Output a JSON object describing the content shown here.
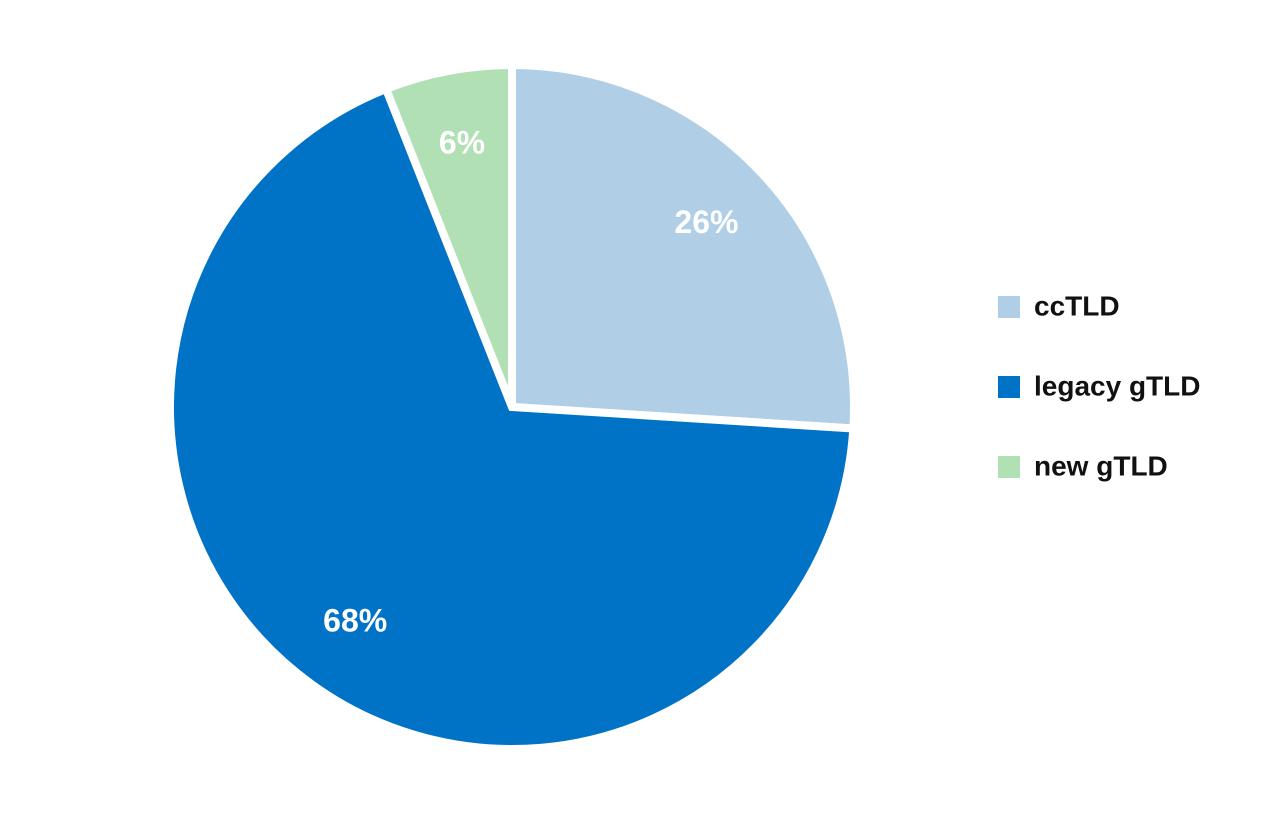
{
  "chart_data": {
    "type": "pie",
    "categories": [
      "ccTLD",
      "legacy gTLD",
      "new gTLD"
    ],
    "values": [
      26,
      68,
      6
    ],
    "value_labels": [
      "26%",
      "68%",
      "6%"
    ],
    "colors": [
      "#b0cfe6",
      "#0073c6",
      "#b2e0b5"
    ],
    "legend": "right"
  }
}
